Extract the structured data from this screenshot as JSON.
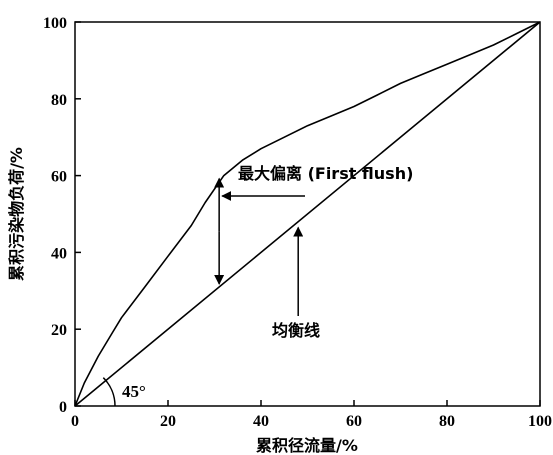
{
  "chart_data": {
    "type": "line",
    "xlabel": "累积径流量/%",
    "ylabel": "累积污染物负荷/%",
    "xlim": [
      0,
      100
    ],
    "ylim": [
      0,
      100
    ],
    "x_ticks": [
      "0",
      "20",
      "40",
      "60",
      "80",
      "100"
    ],
    "y_ticks": [
      "0",
      "20",
      "40",
      "60",
      "80",
      "100"
    ],
    "grid": false,
    "series": [
      {
        "x": [
          0,
          2,
          5,
          8,
          10,
          15,
          20,
          25,
          28,
          32,
          36,
          40,
          45,
          50,
          55,
          60,
          65,
          70,
          75,
          80,
          85,
          90,
          95,
          100
        ],
        "y": [
          0,
          6,
          13,
          19,
          23,
          31,
          39,
          47,
          53,
          60,
          64,
          67,
          70,
          73,
          75.5,
          78,
          81,
          84,
          86.5,
          89,
          91.5,
          94,
          97,
          100
        ]
      },
      {
        "name": "均衡线",
        "x": [
          0,
          100
        ],
        "y": [
          0,
          100
        ]
      }
    ],
    "annotations": {
      "max_deviation": {
        "text": "最大偏离 (First flush)",
        "x": 31,
        "y_top": 60,
        "y_bottom": 31
      },
      "balance_line": {
        "text": "均衡线",
        "x": 48,
        "y": 47
      },
      "angle": {
        "text": "45°"
      }
    }
  }
}
